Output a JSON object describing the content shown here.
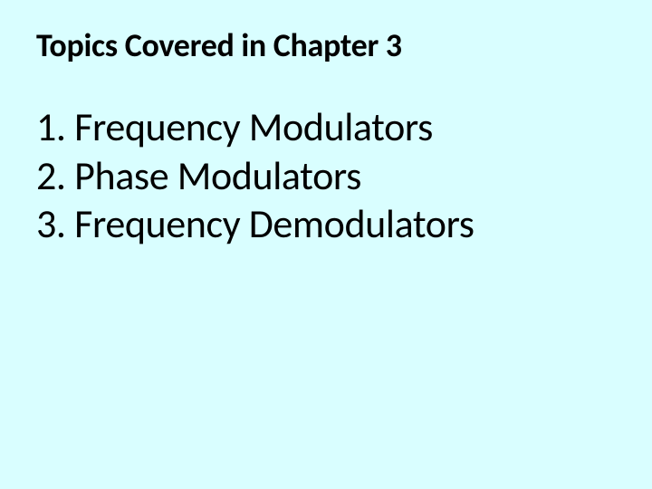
{
  "background_color": "#d9feff",
  "text_color": "#000000",
  "heading": {
    "text": "Topics Covered in Chapter 3",
    "font_size": 36,
    "font_weight": 700
  },
  "list": {
    "font_size": 44,
    "font_weight": 400,
    "items": [
      {
        "number": "1.",
        "label": "Frequency Modulators"
      },
      {
        "number": "2.",
        "label": "Phase Modulators"
      },
      {
        "number": "3.",
        "label": "Frequency Demodulators"
      }
    ]
  }
}
